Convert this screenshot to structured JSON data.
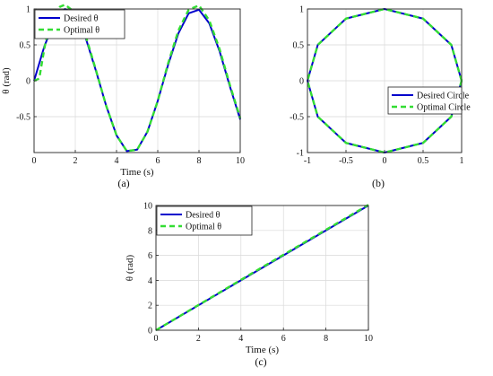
{
  "chart_data": [
    {
      "type": "line",
      "caption": "(a)",
      "xlabel": "Time (s)",
      "ylabel": "θ (rad)",
      "xlim": [
        0,
        10
      ],
      "ylim": [
        -1,
        1
      ],
      "xticks": [
        0,
        2,
        4,
        6,
        8,
        10
      ],
      "yticks": [
        -0.5,
        0,
        0.5,
        1
      ],
      "xtick_labels": [
        "0",
        "2",
        "4",
        "6",
        "8",
        "10"
      ],
      "ytick_labels": [
        "-0.5",
        "0",
        "0.5",
        "1"
      ],
      "grid": true,
      "legend_position": "top-left",
      "series": [
        {
          "name": "Desired θ",
          "style": "solid",
          "color": "#0000cc",
          "x": [
            0,
            0.5,
            1,
            1.5,
            2,
            2.5,
            3,
            3.5,
            4,
            4.5,
            5,
            5.5,
            6,
            6.5,
            7,
            7.5,
            8,
            8.5,
            9,
            9.5,
            10
          ],
          "y": [
            0,
            0.48,
            0.84,
            1.0,
            0.91,
            0.6,
            0.14,
            -0.35,
            -0.76,
            -0.98,
            -0.96,
            -0.71,
            -0.28,
            0.22,
            0.66,
            0.94,
            0.99,
            0.8,
            0.41,
            -0.08,
            -0.54
          ]
        },
        {
          "name": "Optimal θ",
          "style": "dashed",
          "color": "#33dd33",
          "x": [
            0,
            0.25,
            0.5,
            0.75,
            1,
            1.25,
            1.5,
            2,
            2.5,
            3,
            3.5,
            4,
            4.5,
            5,
            5.5,
            6,
            6.5,
            7,
            7.5,
            8,
            8.5,
            9,
            9.5,
            10
          ],
          "y": [
            0,
            0.03,
            0.45,
            0.8,
            0.95,
            1.03,
            1.06,
            0.95,
            0.63,
            0.15,
            -0.35,
            -0.76,
            -0.98,
            -0.96,
            -0.71,
            -0.28,
            0.24,
            0.7,
            0.99,
            1.05,
            0.84,
            0.44,
            -0.06,
            -0.52
          ]
        }
      ]
    },
    {
      "type": "line",
      "caption": "(b)",
      "xlabel": "",
      "ylabel": "",
      "xlim": [
        -1,
        1
      ],
      "ylim": [
        -1,
        1
      ],
      "xticks": [
        -1,
        -0.5,
        0,
        0.5,
        1
      ],
      "yticks": [
        -1,
        -0.5,
        0,
        0.5,
        1
      ],
      "xtick_labels": [
        "-1",
        "-0.5",
        "0",
        "0.5",
        "1"
      ],
      "ytick_labels": [
        "-1",
        "-0.5",
        "0",
        "0.5",
        "1"
      ],
      "grid": true,
      "legend_position": "right",
      "series": [
        {
          "name": "Desired Circle",
          "style": "solid",
          "color": "#0000cc",
          "x": [
            1,
            0.866,
            0.5,
            0,
            -0.5,
            -0.866,
            -1,
            -0.866,
            -0.5,
            0,
            0.5,
            0.866,
            1
          ],
          "y": [
            0,
            0.5,
            0.866,
            1,
            0.866,
            0.5,
            0,
            -0.5,
            -0.866,
            -1,
            -0.866,
            -0.5,
            0
          ]
        },
        {
          "name": "Optimal Circle",
          "style": "dashed",
          "color": "#33dd33",
          "x": [
            1,
            0.866,
            0.5,
            0,
            -0.5,
            -0.866,
            -1,
            -0.866,
            -0.5,
            0,
            0.5,
            0.866,
            1
          ],
          "y": [
            0,
            0.5,
            0.866,
            1,
            0.866,
            0.5,
            0,
            -0.5,
            -0.866,
            -1,
            -0.866,
            -0.5,
            0
          ]
        }
      ]
    },
    {
      "type": "line",
      "caption": "(c)",
      "xlabel": "Time (s)",
      "ylabel": "θ (rad)",
      "xlim": [
        0,
        10
      ],
      "ylim": [
        0,
        10
      ],
      "xticks": [
        0,
        2,
        4,
        6,
        8,
        10
      ],
      "yticks": [
        0,
        2,
        4,
        6,
        8,
        10
      ],
      "xtick_labels": [
        "0",
        "2",
        "4",
        "6",
        "8",
        "10"
      ],
      "ytick_labels": [
        "0",
        "2",
        "4",
        "6",
        "8",
        "10"
      ],
      "grid": true,
      "legend_position": "top-left",
      "series": [
        {
          "name": "Desired θ",
          "style": "solid",
          "color": "#0000cc",
          "x": [
            0,
            10
          ],
          "y": [
            0,
            10
          ]
        },
        {
          "name": "Optimal θ",
          "style": "dashed",
          "color": "#33dd33",
          "x": [
            0,
            5,
            10
          ],
          "y": [
            0,
            5.05,
            10.05
          ]
        }
      ]
    }
  ]
}
